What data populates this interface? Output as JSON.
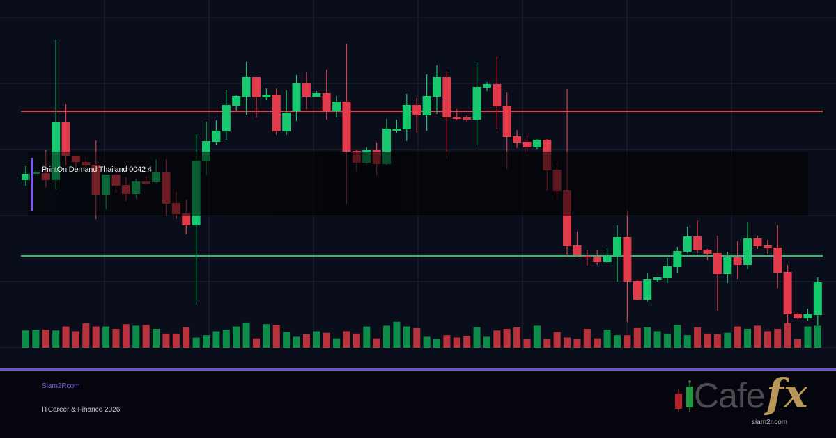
{
  "chart_data": {
    "type": "candlestick",
    "title": "",
    "xlabel": "",
    "ylabel": "",
    "ylim": [
      0,
      475
    ],
    "grid": true,
    "colors": {
      "up": "#16c96e",
      "down": "#e23b4b",
      "up_volume": "#0e8c4a",
      "down_volume": "#b8323e",
      "resistance": "#e0444c",
      "support": "#2bbf73",
      "background": "#0a0e1a",
      "grid": "#1f2535"
    },
    "reference_lines": [
      {
        "name": "resistance",
        "value": 340
      },
      {
        "name": "support",
        "value": 132
      }
    ],
    "ohlc": [
      [
        241,
        250,
        261,
        233
      ],
      [
        250,
        253,
        258,
        246
      ],
      [
        251,
        241,
        284,
        230
      ],
      [
        241,
        324,
        443,
        227
      ],
      [
        324,
        276,
        350,
        262
      ],
      [
        276,
        267,
        276,
        257
      ],
      [
        267,
        262,
        275,
        257
      ],
      [
        263,
        220,
        298,
        185
      ],
      [
        220,
        249,
        249,
        199
      ],
      [
        249,
        233,
        256,
        222
      ],
      [
        234,
        221,
        245,
        211
      ],
      [
        221,
        239,
        243,
        215
      ],
      [
        239,
        236,
        246,
        235
      ],
      [
        238,
        252,
        271,
        237
      ],
      [
        252,
        207,
        271,
        190
      ],
      [
        208,
        192,
        224,
        185
      ],
      [
        193,
        176,
        213,
        163
      ],
      [
        176,
        269,
        307,
        62
      ],
      [
        268,
        297,
        325,
        248
      ],
      [
        296,
        312,
        327,
        292
      ],
      [
        311,
        349,
        371,
        299
      ],
      [
        348,
        362,
        364,
        341
      ],
      [
        361,
        389,
        411,
        335
      ],
      [
        389,
        360,
        389,
        331
      ],
      [
        360,
        364,
        373,
        356
      ],
      [
        364,
        311,
        373,
        306
      ],
      [
        311,
        338,
        370,
        306
      ],
      [
        340,
        380,
        392,
        326
      ],
      [
        380,
        361,
        396,
        343
      ],
      [
        361,
        366,
        369,
        361
      ],
      [
        366,
        340,
        400,
        328
      ],
      [
        340,
        354,
        362,
        331
      ],
      [
        354,
        282,
        437,
        207
      ],
      [
        283,
        266,
        284,
        253
      ],
      [
        266,
        284,
        288,
        264
      ],
      [
        284,
        264,
        295,
        248
      ],
      [
        264,
        315,
        329,
        262
      ],
      [
        312,
        315,
        328,
        309
      ],
      [
        314,
        349,
        365,
        297
      ],
      [
        349,
        334,
        359,
        309
      ],
      [
        334,
        362,
        393,
        312
      ],
      [
        361,
        389,
        406,
        336
      ],
      [
        389,
        331,
        398,
        272
      ],
      [
        332,
        329,
        343,
        327
      ],
      [
        331,
        328,
        334,
        324
      ],
      [
        328,
        375,
        411,
        290
      ],
      [
        374,
        379,
        382,
        369
      ],
      [
        379,
        347,
        418,
        314
      ],
      [
        348,
        303,
        367,
        257
      ],
      [
        304,
        295,
        313,
        287
      ],
      [
        296,
        288,
        305,
        281
      ],
      [
        288,
        299,
        300,
        285
      ],
      [
        299,
        255,
        300,
        225
      ],
      [
        256,
        225,
        266,
        212
      ],
      [
        226,
        146,
        372,
        130
      ],
      [
        147,
        133,
        167,
        130
      ],
      [
        132,
        131,
        140,
        118
      ],
      [
        131,
        123,
        140,
        119
      ],
      [
        123,
        132,
        143,
        122
      ],
      [
        132,
        159,
        176,
        95
      ],
      [
        159,
        95,
        197,
        37
      ],
      [
        96,
        69,
        97,
        68
      ],
      [
        69,
        98,
        107,
        66
      ],
      [
        97,
        101,
        101,
        95
      ],
      [
        100,
        117,
        129,
        93
      ],
      [
        116,
        139,
        145,
        108
      ],
      [
        138,
        160,
        174,
        136
      ],
      [
        160,
        140,
        183,
        136
      ],
      [
        141,
        135,
        142,
        126
      ],
      [
        136,
        106,
        161,
        53
      ],
      [
        106,
        130,
        138,
        93
      ],
      [
        130,
        119,
        153,
        98
      ],
      [
        119,
        157,
        180,
        113
      ],
      [
        157,
        146,
        161,
        142
      ],
      [
        147,
        143,
        155,
        134
      ],
      [
        144,
        108,
        176,
        86
      ],
      [
        109,
        48,
        119,
        35
      ],
      [
        49,
        42,
        50,
        41
      ],
      [
        42,
        48,
        56,
        39
      ],
      [
        47,
        94,
        101,
        32
      ]
    ],
    "volume": [
      65,
      68,
      68,
      65,
      80,
      62,
      92,
      80,
      80,
      71,
      89,
      83,
      86,
      71,
      53,
      53,
      77,
      38,
      47,
      62,
      68,
      80,
      95,
      35,
      89,
      86,
      59,
      41,
      50,
      62,
      56,
      35,
      62,
      53,
      80,
      35,
      83,
      98,
      80,
      74,
      41,
      32,
      47,
      38,
      44,
      77,
      41,
      65,
      71,
      77,
      32,
      83,
      32,
      59,
      38,
      32,
      71,
      35,
      68,
      47,
      47,
      74,
      77,
      62,
      53,
      86,
      47,
      77,
      53,
      50,
      56,
      80,
      71,
      83,
      62,
      71,
      92,
      32,
      80,
      83
    ],
    "volume_max": 100,
    "annotation": "PrintOn Demand Thailand 0042 4"
  },
  "footer": {
    "site": "Siam2Rcom",
    "tagline": "ITCareer & Finance 2026"
  },
  "logo": {
    "name_light": "Cafe",
    "name_accent": "fx",
    "url": "siam2r.com"
  }
}
